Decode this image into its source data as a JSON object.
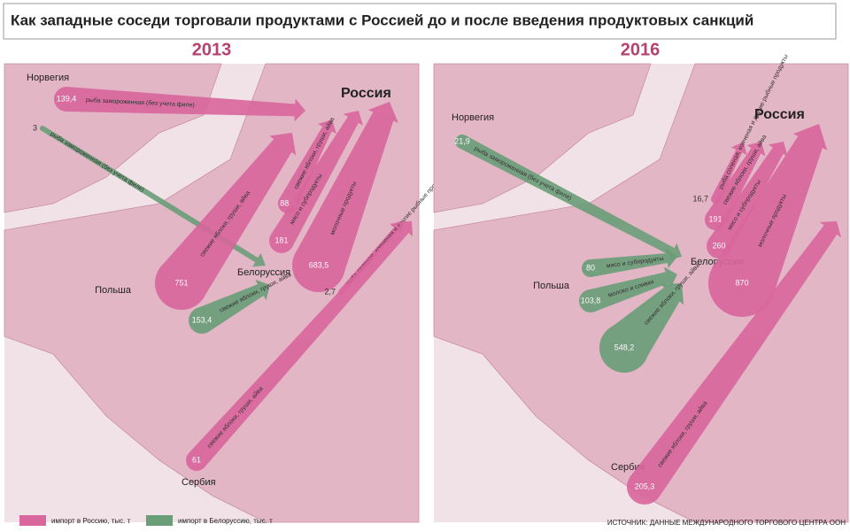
{
  "title": "Как западные соседи торговали продуктами с Россией до и после введения продуктовых санкций",
  "panels": [
    {
      "year": "2013",
      "countries": [
        "Норвегия",
        "Польша",
        "Белоруссия",
        "Россия",
        "Сербия"
      ],
      "flows": [
        {
          "value": "139,4",
          "label": "рыба замороженная (без учета филе)",
          "color": "#d9669c"
        },
        {
          "value": "3",
          "label": "рыба замороженная (без учета филе)",
          "color": "#6a9e78"
        },
        {
          "value": "751",
          "label": "свежие яблоки, груши, айва",
          "color": "#d9669c"
        },
        {
          "value": "153,4",
          "label": "свежие яблоки, груши, айва",
          "color": "#6a9e78"
        },
        {
          "value": "88,4",
          "label": "свежие яблоки, груши, айва",
          "color": "#d9669c"
        },
        {
          "value": "181",
          "label": "мясо и субпродукты",
          "color": "#d9669c"
        },
        {
          "value": "683,5",
          "label": "молочные продукты",
          "color": "#d9669c"
        },
        {
          "value": "2,7",
          "label": "рыба соленая, копченая и другие рыбные продукты",
          "color": "#d9669c"
        },
        {
          "value": "61",
          "label": "свежие яблоки, груши, айва",
          "color": "#d9669c"
        }
      ]
    },
    {
      "year": "2016",
      "countries": [
        "Норвегия",
        "Польша",
        "Белоруссия",
        "Россия",
        "Сербия"
      ],
      "flows": [
        {
          "value": "21,9",
          "label": "рыба замороженная (без учета филе)",
          "color": "#6a9e78"
        },
        {
          "value": "80",
          "label": "мясо и субпродукты",
          "color": "#6a9e78"
        },
        {
          "value": "103,8",
          "label": "молоко и сливки",
          "color": "#6a9e78"
        },
        {
          "value": "548,2",
          "label": "свежие яблоки, груши, айва",
          "color": "#6a9e78"
        },
        {
          "value": "16,7",
          "label": "рыба соленая, копченая и другие рыбные продукты",
          "color": "#d9669c"
        },
        {
          "value": "191",
          "label": "свежие яблоки, груши, айва",
          "color": "#d9669c"
        },
        {
          "value": "260",
          "label": "мясо и субпродукты",
          "color": "#d9669c"
        },
        {
          "value": "870",
          "label": "молочные продукты",
          "color": "#d9669c"
        },
        {
          "value": "205,3",
          "label": "свежие яблоки, груши, айва",
          "color": "#d9669c"
        }
      ]
    }
  ],
  "legend": [
    {
      "label": "импорт в Россию, тыс. т",
      "color": "#d9669c"
    },
    {
      "label": "импорт в Белоруссию, тыс. т",
      "color": "#6a9e78"
    }
  ],
  "source": "ИСТОЧНИК: ДАННЫЕ МЕЖДУНАРОДНОГО ТОРГОВОГО ЦЕНТРА ООН"
}
